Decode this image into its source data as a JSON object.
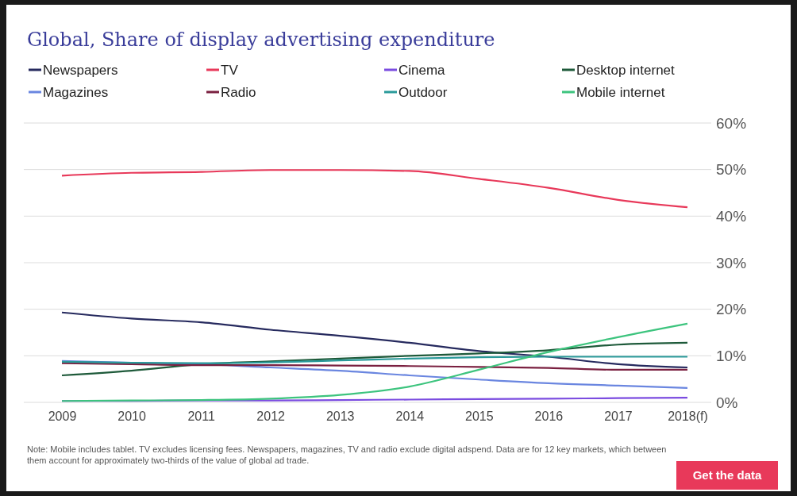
{
  "chart_data": {
    "type": "line",
    "title": "Global, Share of display advertising expenditure",
    "categories": [
      "2009",
      "2010",
      "2011",
      "2012",
      "2013",
      "2014",
      "2015",
      "2016",
      "2017",
      "2018(f)"
    ],
    "series": [
      {
        "name": "Newspapers",
        "color": "#262a5e",
        "values": [
          19.3,
          18.0,
          17.2,
          15.6,
          14.3,
          12.8,
          11.0,
          9.8,
          8.2,
          7.5
        ]
      },
      {
        "name": "TV",
        "color": "#e8395a",
        "values": [
          48.7,
          49.3,
          49.5,
          49.9,
          49.9,
          49.7,
          48.0,
          46.1,
          43.5,
          41.9
        ]
      },
      {
        "name": "Cinema",
        "color": "#7b4ce0",
        "values": [
          0.3,
          0.3,
          0.4,
          0.4,
          0.5,
          0.6,
          0.7,
          0.8,
          0.9,
          1.0
        ]
      },
      {
        "name": "Desktop internet",
        "color": "#1e5a3a",
        "values": [
          5.8,
          6.8,
          8.2,
          8.8,
          9.4,
          10.0,
          10.5,
          11.2,
          12.4,
          12.8
        ]
      },
      {
        "name": "Magazines",
        "color": "#6a86e0",
        "values": [
          8.9,
          8.5,
          8.2,
          7.5,
          6.8,
          5.8,
          4.9,
          4.1,
          3.6,
          3.1
        ]
      },
      {
        "name": "Radio",
        "color": "#7a2040",
        "values": [
          8.4,
          8.2,
          8.0,
          8.0,
          7.9,
          7.8,
          7.6,
          7.4,
          7.0,
          7.0
        ]
      },
      {
        "name": "Outdoor",
        "color": "#2a9a9a",
        "values": [
          8.7,
          8.5,
          8.4,
          8.6,
          9.0,
          9.4,
          9.7,
          9.8,
          9.8,
          9.8
        ]
      },
      {
        "name": "Mobile internet",
        "color": "#3dc47e",
        "values": [
          0.3,
          0.4,
          0.5,
          0.8,
          1.6,
          3.4,
          7.0,
          10.8,
          14.0,
          16.9
        ]
      }
    ],
    "ylim": [
      0,
      60
    ],
    "yticks": [
      {
        "value": 0,
        "label": "0%"
      },
      {
        "value": 10,
        "label": "10%"
      },
      {
        "value": 20,
        "label": "20%"
      },
      {
        "value": 30,
        "label": "30%"
      },
      {
        "value": 40,
        "label": "40%"
      },
      {
        "value": 50,
        "label": "50%"
      },
      {
        "value": 60,
        "label": "60%"
      }
    ],
    "grid": "y",
    "legend": "top",
    "marker": "none",
    "line_style": "solid",
    "annotations": [
      "Note: Mobile includes tablet. TV excludes licensing fees. Newspapers, magazines, TV and radio exclude digital adspend. Data are for 12 key markets, which between them account for approximately two-thirds of the value of global ad trade.",
      "Get the data"
    ]
  }
}
